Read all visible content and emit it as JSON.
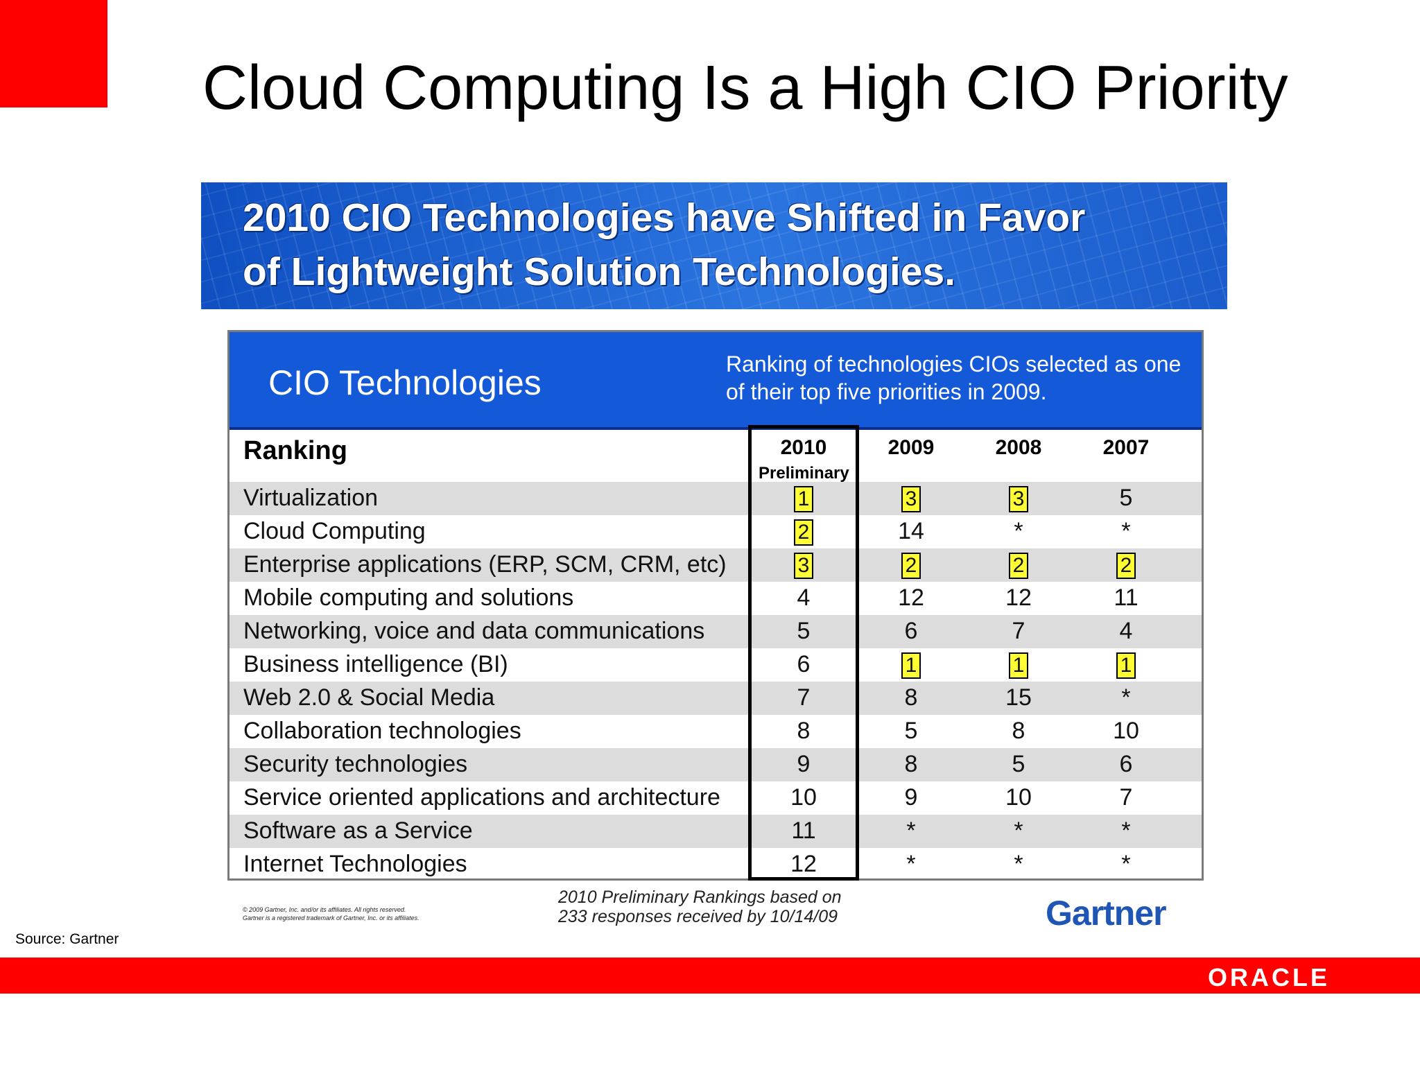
{
  "slide": {
    "title": "Cloud Computing Is a High CIO Priority",
    "source": "Source: Gartner",
    "oracle_logo": "ORACLE",
    "colors": {
      "accent_red": "#ff0000",
      "banner_blue": "#1a5fd0",
      "highlight_yellow": "#ffff33"
    }
  },
  "banner": {
    "line1": "2010 CIO Technologies have Shifted in Favor",
    "line2": "of Lightweight Solution Technologies."
  },
  "table": {
    "title": "CIO Technologies",
    "description": "Ranking of technologies CIOs selected as one of their top five priorities in 2009.",
    "ranking_label": "Ranking",
    "columns": [
      "2010",
      "2009",
      "2008",
      "2007"
    ],
    "col_2010_sub": "Preliminary",
    "rows": [
      {
        "label": "Virtualization",
        "values": [
          "1",
          "3",
          "3",
          "5"
        ],
        "highlight": [
          true,
          true,
          true,
          false
        ]
      },
      {
        "label": "Cloud Computing",
        "values": [
          "2",
          "14",
          "*",
          "*"
        ],
        "highlight": [
          true,
          false,
          false,
          false
        ]
      },
      {
        "label": "Enterprise applications (ERP, SCM, CRM, etc)",
        "values": [
          "3",
          "2",
          "2",
          "2"
        ],
        "highlight": [
          true,
          true,
          true,
          true
        ]
      },
      {
        "label": "Mobile computing and solutions",
        "values": [
          "4",
          "12",
          "12",
          "11"
        ],
        "highlight": [
          false,
          false,
          false,
          false
        ]
      },
      {
        "label": "Networking, voice and data communications",
        "values": [
          "5",
          "6",
          "7",
          "4"
        ],
        "highlight": [
          false,
          false,
          false,
          false
        ]
      },
      {
        "label": "Business intelligence (BI)",
        "values": [
          "6",
          "1",
          "1",
          "1"
        ],
        "highlight": [
          false,
          true,
          true,
          true
        ]
      },
      {
        "label": "Web 2.0 & Social Media",
        "values": [
          "7",
          "8",
          "15",
          "*"
        ],
        "highlight": [
          false,
          false,
          false,
          false
        ]
      },
      {
        "label": "Collaboration technologies",
        "values": [
          "8",
          "5",
          "8",
          "10"
        ],
        "highlight": [
          false,
          false,
          false,
          false
        ]
      },
      {
        "label": "Security technologies",
        "values": [
          "9",
          "8",
          "5",
          "6"
        ],
        "highlight": [
          false,
          false,
          false,
          false
        ]
      },
      {
        "label": "Service oriented applications and architecture",
        "values": [
          "10",
          "9",
          "10",
          "7"
        ],
        "highlight": [
          false,
          false,
          false,
          false
        ]
      },
      {
        "label": "Software as a Service",
        "values": [
          "11",
          "*",
          "*",
          "*"
        ],
        "highlight": [
          false,
          false,
          false,
          false
        ]
      },
      {
        "label": "Internet Technologies",
        "values": [
          "12",
          "*",
          "*",
          "*"
        ],
        "highlight": [
          false,
          false,
          false,
          false
        ]
      }
    ],
    "notes_line1": "2010 Preliminary Rankings based on",
    "notes_line2": "233 responses received by 10/14/09",
    "copyright_line1": "© 2009 Gartner, Inc. and/or its affiliates. All rights reserved.",
    "copyright_line2": "Gartner is a registered trademark of Gartner, Inc. or its affiliates.",
    "gartner_logo": "Gartner"
  }
}
